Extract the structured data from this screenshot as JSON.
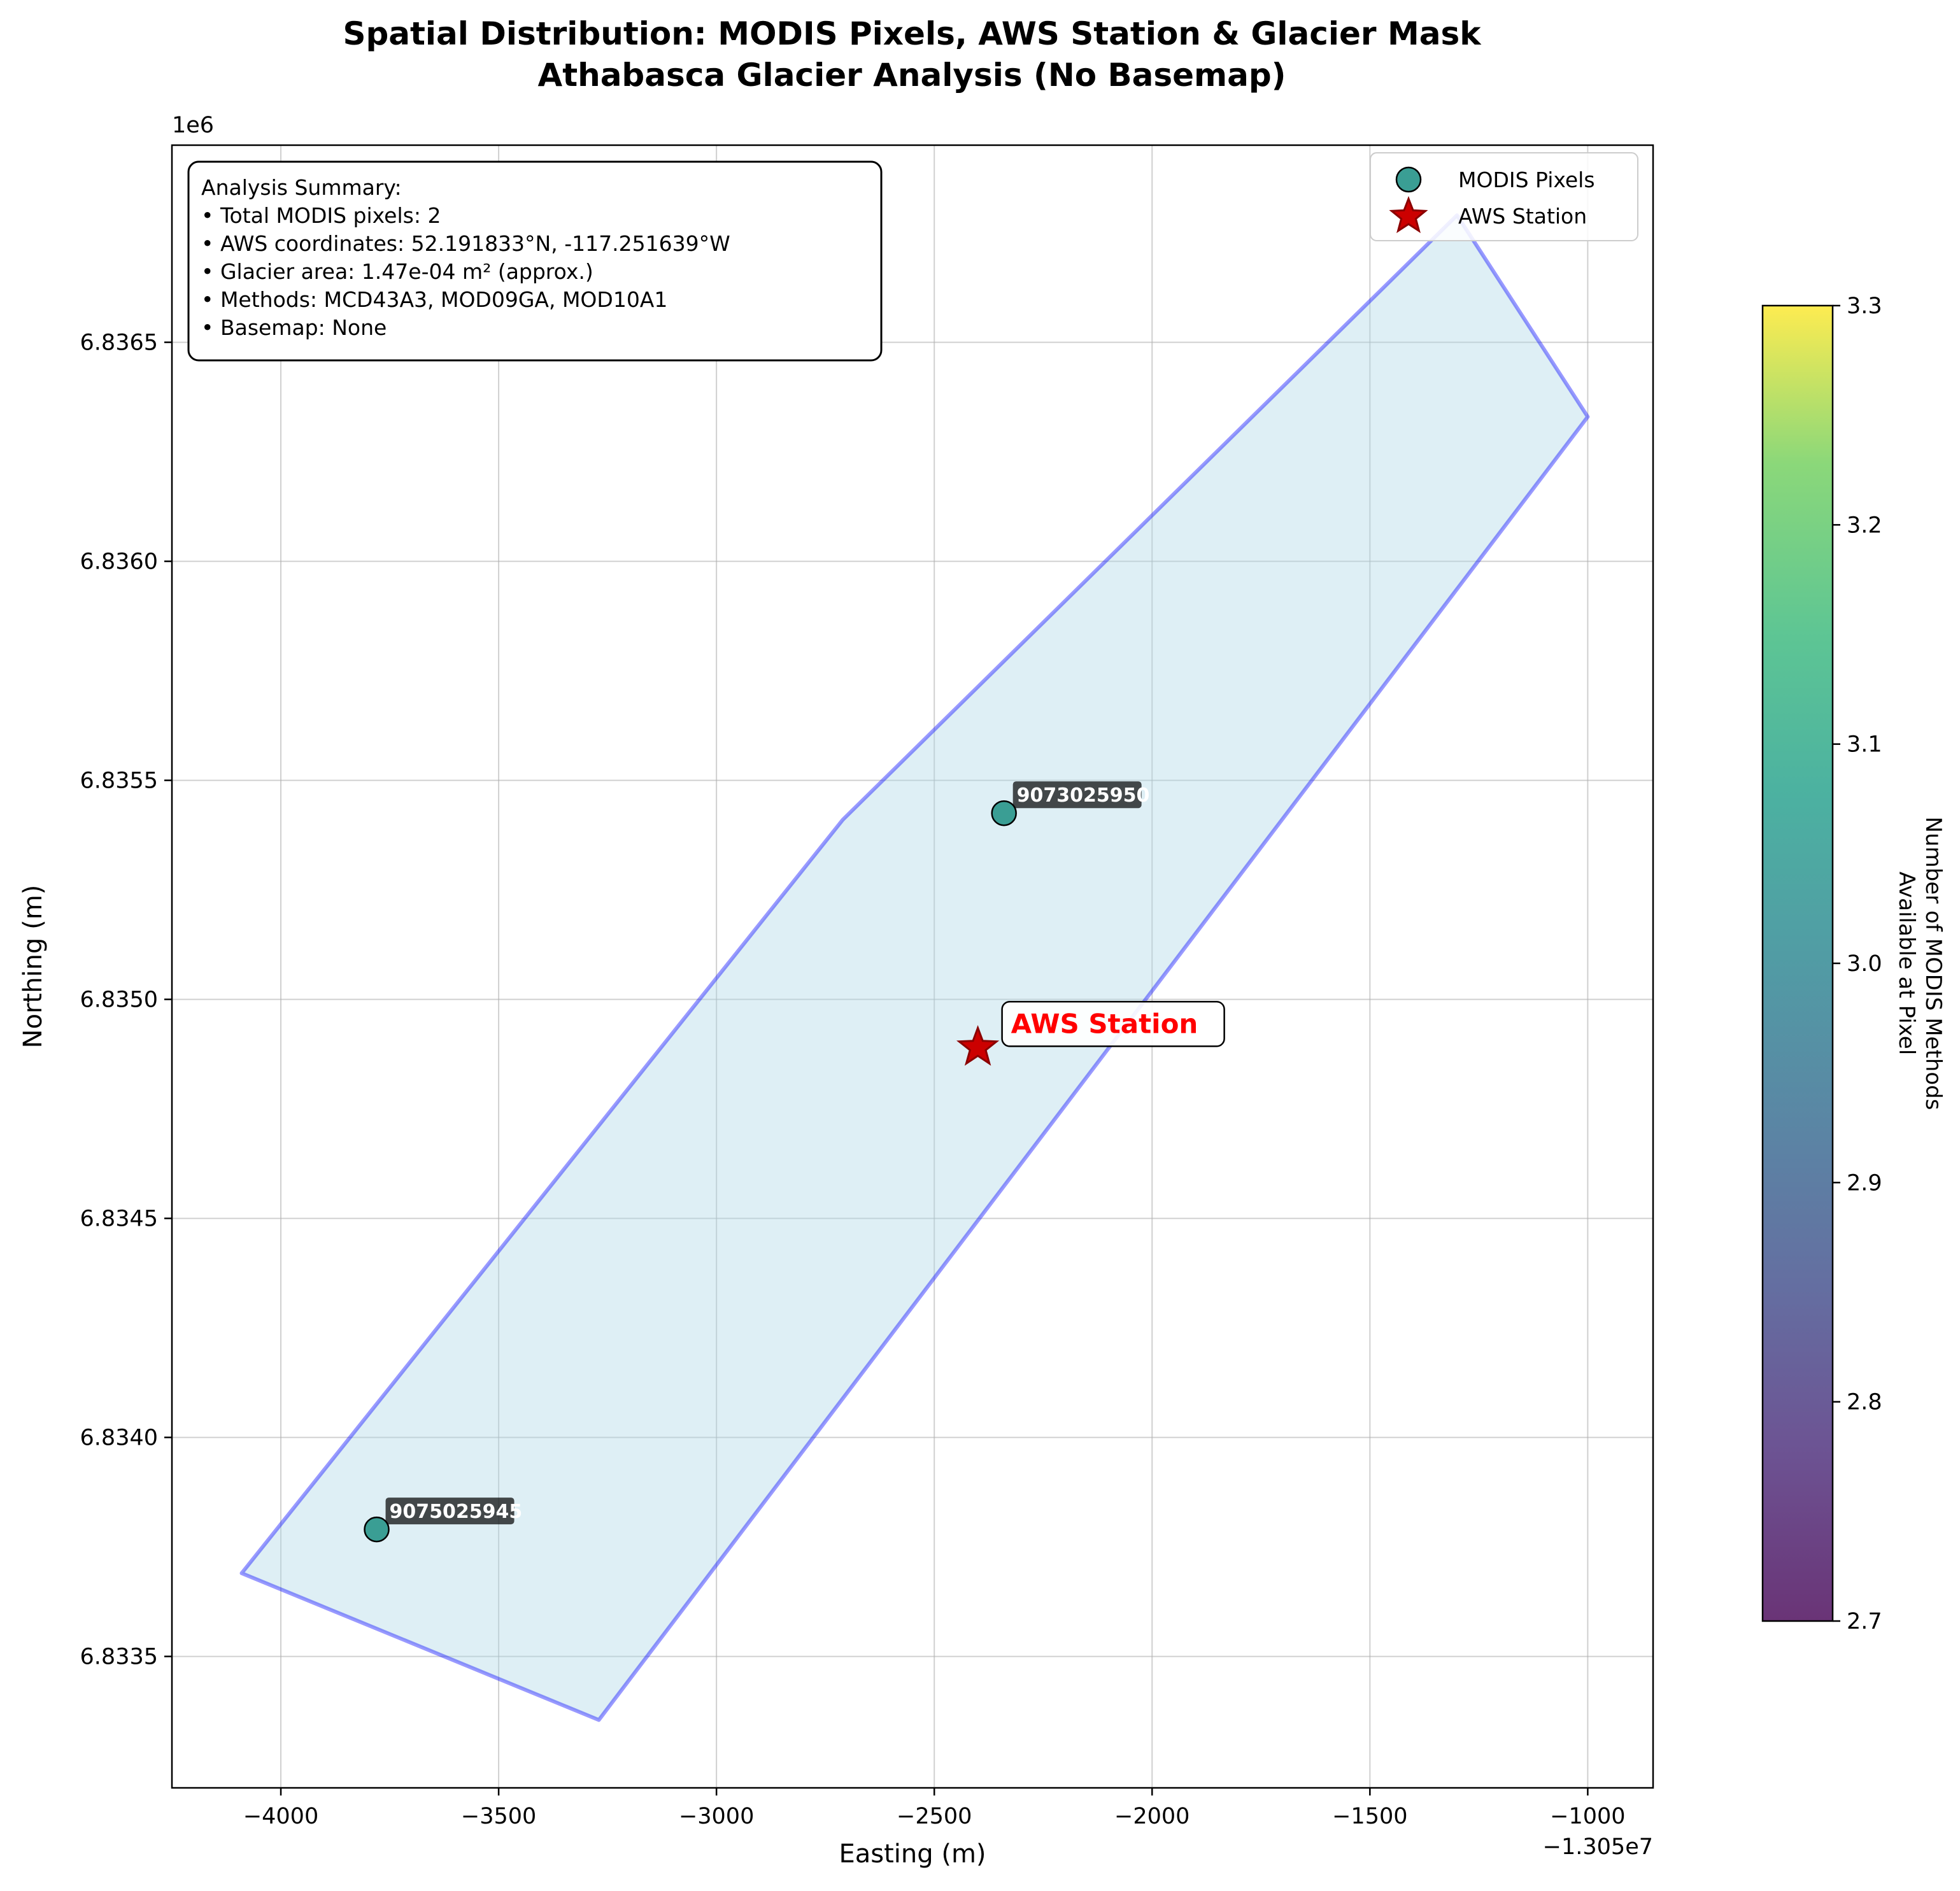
{
  "chart_data": {
    "type": "scatter",
    "title": "Spatial Distribution: MODIS Pixels, AWS Station & Glacier Mask",
    "subtitle": "Athabasca Glacier Analysis (No Basemap)",
    "xlabel": "Easting (m)",
    "ylabel": "Northing (m)",
    "x_offset_label": "−1.305e7",
    "y_scale_label": "1e6",
    "xlim": [
      -13054250,
      -13050850
    ],
    "ylim": [
      6833200,
      6836950
    ],
    "x_ticks": [
      -13054000,
      -13053500,
      -13053000,
      -13052500,
      -13052000,
      -13051500,
      -13051000
    ],
    "x_tick_labels": [
      "−4000",
      "−3500",
      "−3000",
      "−2500",
      "−2000",
      "−1500",
      "−1000"
    ],
    "y_ticks": [
      6833500,
      6834000,
      6834500,
      6835000,
      6835500,
      6836000,
      6836500
    ],
    "y_tick_labels": [
      "6.8335",
      "6.8340",
      "6.8345",
      "6.8350",
      "6.8355",
      "6.8360",
      "6.8365"
    ],
    "grid": true,
    "legend_position": "top-right",
    "glacier_mask": {
      "fill": "#add8e6",
      "edge": "#0000ff",
      "vertices": [
        [
          -13054090,
          6833690
        ],
        [
          -13053270,
          6833355
        ],
        [
          -13051000,
          6836330
        ],
        [
          -13051300,
          6836790
        ],
        [
          -13052710,
          6835410
        ]
      ]
    },
    "series": [
      {
        "name": "MODIS Pixels",
        "marker": "circle",
        "color": "#3a9e94",
        "points": [
          {
            "x": -13052340,
            "y": 6835425,
            "label": "9073025950",
            "methods": 3
          },
          {
            "x": -13053780,
            "y": 6833790,
            "label": "9075025945",
            "methods": 3
          }
        ]
      },
      {
        "name": "AWS Station",
        "marker": "star",
        "color": "#cc0000",
        "points": [
          {
            "x": -13052400,
            "y": 6834890,
            "label": "AWS Station"
          }
        ]
      }
    ],
    "colorbar": {
      "label_line1": "Number of MODIS Methods",
      "label_line2": "Available at Pixel",
      "range": [
        2.7,
        3.3
      ],
      "tick_labels": [
        "2.7",
        "2.8",
        "2.9",
        "3.0",
        "3.1",
        "3.2",
        "3.3"
      ]
    },
    "summary": {
      "lines": [
        "Analysis Summary:",
        "• Total MODIS pixels: 2",
        "• AWS coordinates: 52.191833°N, -117.251639°W",
        "• Glacier area: 1.47e-04 m² (approx.)",
        "• Methods: MCD43A3, MOD09GA, MOD10A1",
        "• Basemap: None"
      ]
    }
  }
}
